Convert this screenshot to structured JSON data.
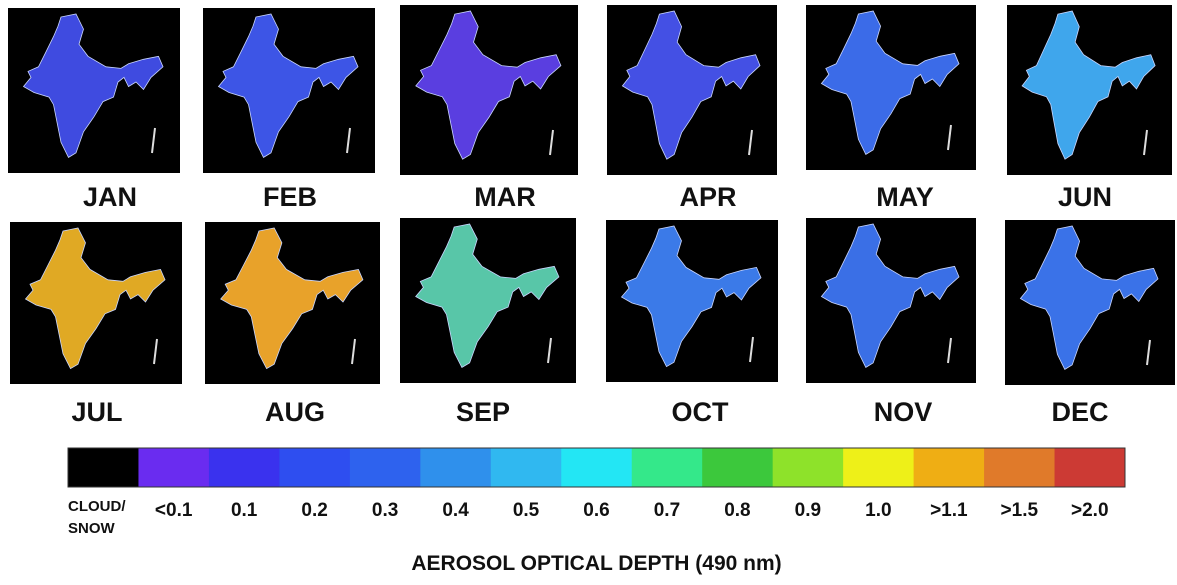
{
  "maps": [
    {
      "label": "JAN",
      "color": "#3f4be0"
    },
    {
      "label": "FEB",
      "color": "#3d55e6"
    },
    {
      "label": "MAR",
      "color": "#5a3ee0"
    },
    {
      "label": "APR",
      "color": "#4450e4"
    },
    {
      "label": "MAY",
      "color": "#3b6be8"
    },
    {
      "label": "JUN",
      "color": "#3fa6ec"
    },
    {
      "label": "JUL",
      "color": "#e0a924"
    },
    {
      "label": "AUG",
      "color": "#e8a22a"
    },
    {
      "label": "SEP",
      "color": "#58c6a8"
    },
    {
      "label": "OCT",
      "color": "#3b7ae8"
    },
    {
      "label": "NOV",
      "color": "#3a6fe6"
    },
    {
      "label": "DEC",
      "color": "#3a72e8"
    }
  ],
  "legend": {
    "title": "AEROSOL OPTICAL DEPTH (490 nm)",
    "entries": [
      {
        "label": "CLOUD/ SNOW",
        "color": "#000000"
      },
      {
        "label": "<0.1",
        "color": "#6a2cf0"
      },
      {
        "label": "0.1",
        "color": "#3a32ee"
      },
      {
        "label": "0.2",
        "color": "#2e4ef0"
      },
      {
        "label": "0.3",
        "color": "#2e62ee"
      },
      {
        "label": "0.4",
        "color": "#2f90ec"
      },
      {
        "label": "0.5",
        "color": "#30b8f0"
      },
      {
        "label": "0.6",
        "color": "#23e6f4"
      },
      {
        "label": "0.7",
        "color": "#34e88a"
      },
      {
        "label": "0.8",
        "color": "#3cc83c"
      },
      {
        "label": "0.9",
        "color": "#8ee22a"
      },
      {
        "label": "1.0",
        "color": "#eef018"
      },
      {
        "label": ">1.1",
        "color": "#efae14"
      },
      {
        "label": ">1.5",
        "color": "#e07a2a"
      },
      {
        "label": ">2.0",
        "color": "#cc3a34"
      }
    ]
  }
}
